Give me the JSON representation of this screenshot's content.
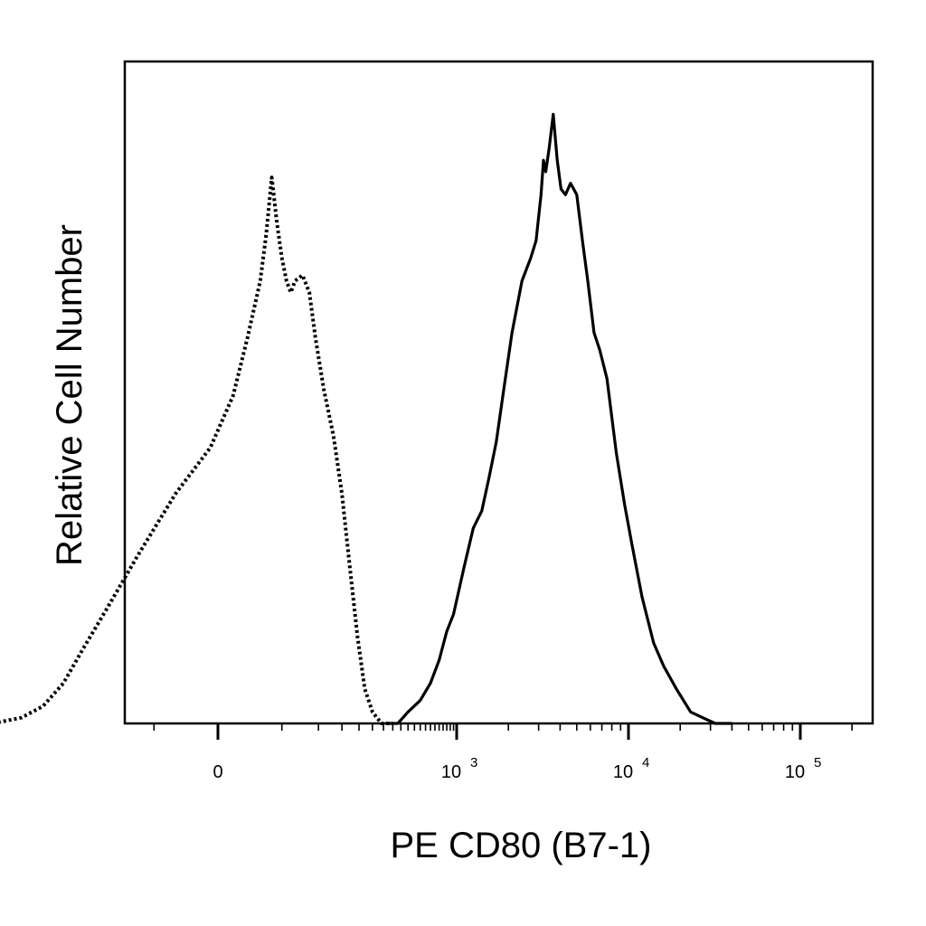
{
  "chart_data": {
    "type": "area",
    "scale": "biexponential",
    "xlabel": "PE CD80 (B7-1)",
    "ylabel": "Relative Cell Number",
    "tick_labels": [
      {
        "value": 0,
        "base": "0",
        "exp": ""
      },
      {
        "value": 1000,
        "base": "10",
        "exp": "3"
      },
      {
        "value": 10000,
        "base": "10",
        "exp": "4"
      },
      {
        "value": 100000,
        "base": "10",
        "exp": "5"
      }
    ],
    "xlim": [
      -1200,
      250000
    ],
    "ylim": [
      0,
      105
    ],
    "grid": false,
    "legend": "none",
    "series": [
      {
        "style": "dotted",
        "color": "#000000",
        "points": [
          [
            -800,
            0
          ],
          [
            -500,
            1
          ],
          [
            -350,
            3
          ],
          [
            -250,
            7
          ],
          [
            -180,
            13
          ],
          [
            -120,
            20
          ],
          [
            -70,
            29
          ],
          [
            -30,
            40
          ],
          [
            -5,
            48
          ],
          [
            10,
            57
          ],
          [
            20,
            67
          ],
          [
            30,
            77
          ],
          [
            35,
            85
          ],
          [
            40,
            95
          ],
          [
            45,
            87
          ],
          [
            50,
            81
          ],
          [
            55,
            77
          ],
          [
            60,
            75
          ],
          [
            65,
            77
          ],
          [
            75,
            78
          ],
          [
            85,
            75
          ],
          [
            95,
            67
          ],
          [
            110,
            58
          ],
          [
            130,
            50
          ],
          [
            150,
            40
          ],
          [
            170,
            28
          ],
          [
            195,
            15
          ],
          [
            220,
            6
          ],
          [
            250,
            2
          ],
          [
            290,
            0
          ],
          [
            350,
            0
          ]
        ]
      },
      {
        "style": "solid",
        "color": "#000000",
        "points": [
          [
            310,
            0
          ],
          [
            380,
            0
          ],
          [
            450,
            2
          ],
          [
            550,
            4
          ],
          [
            650,
            7
          ],
          [
            750,
            11
          ],
          [
            850,
            16
          ],
          [
            950,
            19
          ],
          [
            1100,
            27
          ],
          [
            1250,
            34
          ],
          [
            1400,
            37
          ],
          [
            1550,
            43
          ],
          [
            1700,
            49
          ],
          [
            1900,
            59
          ],
          [
            2100,
            68
          ],
          [
            2400,
            77
          ],
          [
            2700,
            81
          ],
          [
            2900,
            84
          ],
          [
            3100,
            92
          ],
          [
            3200,
            98
          ],
          [
            3300,
            96
          ],
          [
            3450,
            100
          ],
          [
            3650,
            106
          ],
          [
            3850,
            98
          ],
          [
            4050,
            93
          ],
          [
            4300,
            92
          ],
          [
            4600,
            94
          ],
          [
            5000,
            92
          ],
          [
            5400,
            84
          ],
          [
            5800,
            77
          ],
          [
            6300,
            68
          ],
          [
            6800,
            65
          ],
          [
            7500,
            60
          ],
          [
            8500,
            47
          ],
          [
            9500,
            38
          ],
          [
            10500,
            31
          ],
          [
            12000,
            22
          ],
          [
            14000,
            14
          ],
          [
            16000,
            10
          ],
          [
            19000,
            6
          ],
          [
            23000,
            2
          ],
          [
            27000,
            1
          ],
          [
            32000,
            0
          ],
          [
            40000,
            0
          ]
        ]
      }
    ]
  }
}
